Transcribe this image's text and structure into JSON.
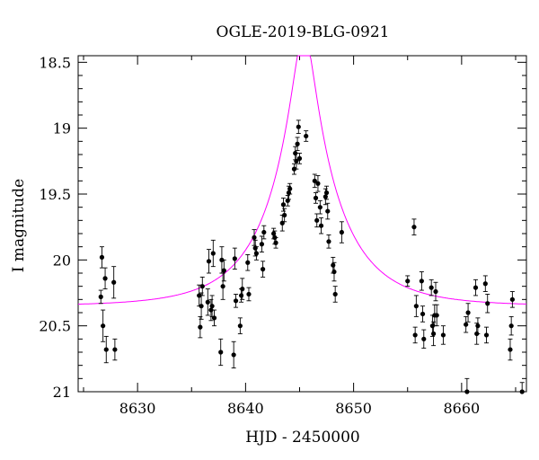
{
  "chart_data": {
    "type": "scatter",
    "title": "OGLE-2019-BLG-0921",
    "xlabel": "HJD - 2450000",
    "ylabel": "I magnitude",
    "xlim": [
      8624.5,
      8666
    ],
    "ylim": [
      21,
      18.45
    ],
    "y_inverted": true,
    "x_ticks": [
      8630,
      8640,
      8650,
      8660
    ],
    "y_ticks": [
      18.5,
      19,
      19.5,
      20,
      20.5,
      21
    ],
    "x_tick_labels": [
      "8630",
      "8640",
      "8650",
      "8660"
    ],
    "y_tick_labels": [
      "18.5",
      "19",
      "19.5",
      "20",
      "20.5",
      "21"
    ],
    "grid": false,
    "series": [
      {
        "kind": "points_with_errorbars",
        "color": "#000000",
        "x": [
          8626.6,
          8626.7,
          8626.8,
          8627.0,
          8627.1,
          8627.8,
          8627.9,
          8635.7,
          8635.8,
          8635.9,
          8636.0,
          8636.5,
          8636.6,
          8636.8,
          8636.9,
          8637.0,
          8637.1,
          8637.7,
          8637.8,
          8637.9,
          8638.0,
          8638.9,
          8639.0,
          8639.1,
          8639.5,
          8639.6,
          8639.7,
          8640.2,
          8640.3,
          8640.8,
          8640.9,
          8641.0,
          8641.5,
          8641.6,
          8641.7,
          8642.6,
          8642.7,
          8642.8,
          8643.4,
          8643.5,
          8643.6,
          8643.9,
          8644.0,
          8644.1,
          8644.5,
          8644.6,
          8644.7,
          8644.8,
          8644.9,
          8645.0,
          8645.6,
          8646.4,
          8646.5,
          8646.6,
          8646.7,
          8646.9,
          8647.0,
          8647.4,
          8647.5,
          8647.6,
          8647.7,
          8648.1,
          8648.2,
          8648.3,
          8648.9,
          8655.0,
          8655.6,
          8655.7,
          8655.8,
          8656.3,
          8656.4,
          8656.5,
          8657.2,
          8657.3,
          8657.4,
          8657.5,
          8657.6,
          8657.7,
          8658.3,
          8660.4,
          8660.5,
          8660.6,
          8661.3,
          8661.4,
          8661.5,
          8662.2,
          8662.3,
          8662.4,
          8664.5,
          8664.6,
          8664.7,
          8665.6
        ],
        "y": [
          20.28,
          19.98,
          20.5,
          20.14,
          20.68,
          20.17,
          20.68,
          20.27,
          20.51,
          20.35,
          20.2,
          20.32,
          20.01,
          20.38,
          20.35,
          19.95,
          20.44,
          20.7,
          20.0,
          20.2,
          20.08,
          20.72,
          19.99,
          20.31,
          20.5,
          20.27,
          20.22,
          20.02,
          20.26,
          19.83,
          19.91,
          19.95,
          19.88,
          20.07,
          19.79,
          19.8,
          19.83,
          19.87,
          19.72,
          19.58,
          19.66,
          19.55,
          19.49,
          19.46,
          19.31,
          19.19,
          19.25,
          19.12,
          18.99,
          19.23,
          19.06,
          19.4,
          19.53,
          19.7,
          19.42,
          19.6,
          19.74,
          19.52,
          19.49,
          19.63,
          19.86,
          20.04,
          20.09,
          20.26,
          19.79,
          20.16,
          19.75,
          20.57,
          20.35,
          20.16,
          20.41,
          20.6,
          20.21,
          20.5,
          20.56,
          20.42,
          20.24,
          20.42,
          20.57,
          20.49,
          21.0,
          20.4,
          20.21,
          20.56,
          20.5,
          20.18,
          20.57,
          20.33,
          20.68,
          20.5,
          20.3,
          21.0
        ],
        "yerr": [
          0.05,
          0.08,
          0.12,
          0.08,
          0.1,
          0.12,
          0.08,
          0.08,
          0.08,
          0.1,
          0.07,
          0.1,
          0.09,
          0.08,
          0.08,
          0.1,
          0.06,
          0.1,
          0.1,
          0.1,
          0.08,
          0.1,
          0.08,
          0.05,
          0.06,
          0.05,
          0.08,
          0.06,
          0.05,
          0.06,
          0.06,
          0.05,
          0.06,
          0.06,
          0.05,
          0.04,
          0.05,
          0.04,
          0.06,
          0.05,
          0.05,
          0.04,
          0.05,
          0.04,
          0.04,
          0.05,
          0.06,
          0.05,
          0.05,
          0.04,
          0.04,
          0.05,
          0.04,
          0.05,
          0.06,
          0.05,
          0.06,
          0.06,
          0.05,
          0.06,
          0.05,
          0.06,
          0.07,
          0.06,
          0.08,
          0.04,
          0.06,
          0.06,
          0.08,
          0.07,
          0.06,
          0.07,
          0.06,
          0.08,
          0.09,
          0.08,
          0.07,
          0.08,
          0.07,
          0.06,
          0.1,
          0.07,
          0.06,
          0.08,
          0.06,
          0.06,
          0.06,
          0.07,
          0.08,
          0.07,
          0.06,
          0.07
        ]
      },
      {
        "kind": "model_curve",
        "color": "#ff00ff",
        "model": "point-lens",
        "t0": 8645.4,
        "u0": 0.15,
        "tE": 6.5,
        "baseline_mag": 20.35
      }
    ]
  }
}
